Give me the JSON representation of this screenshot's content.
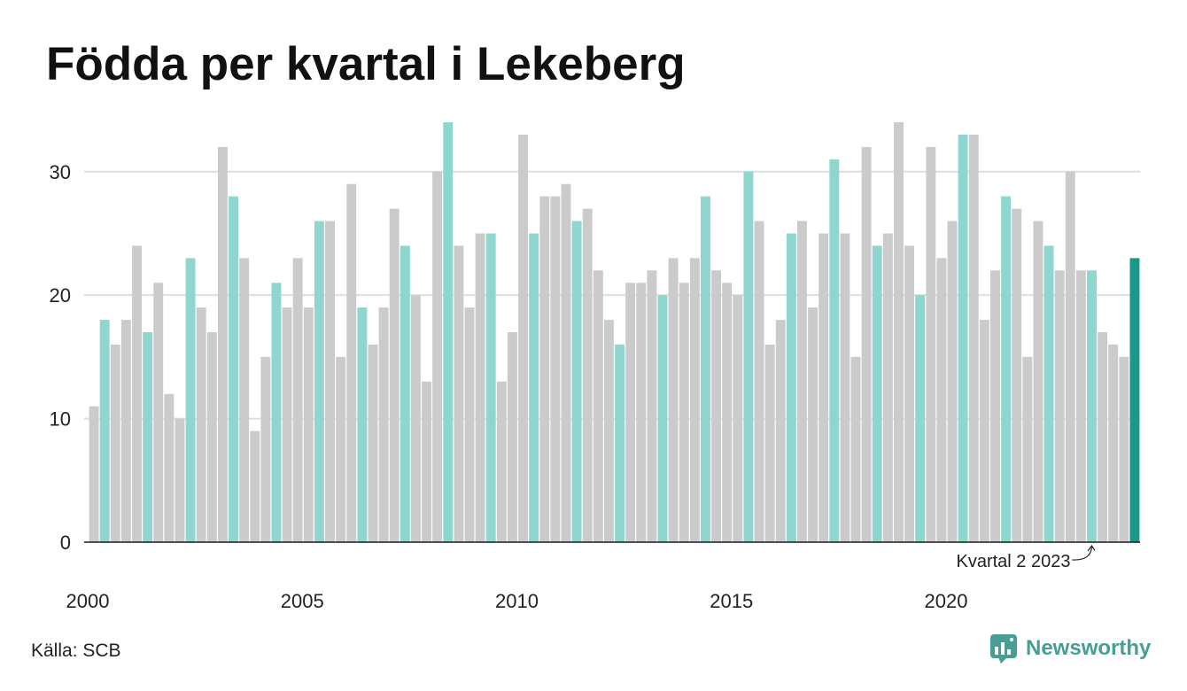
{
  "chart_data": {
    "type": "bar",
    "title": "Födda per kvartal i Lekeberg",
    "x": [
      "2000-Q1",
      "2000-Q2",
      "2000-Q3",
      "2000-Q4",
      "2001-Q1",
      "2001-Q2",
      "2001-Q3",
      "2001-Q4",
      "2002-Q1",
      "2002-Q2",
      "2002-Q3",
      "2002-Q4",
      "2003-Q1",
      "2003-Q2",
      "2003-Q3",
      "2003-Q4",
      "2004-Q1",
      "2004-Q2",
      "2004-Q3",
      "2004-Q4",
      "2005-Q1",
      "2005-Q2",
      "2005-Q3",
      "2005-Q4",
      "2006-Q1",
      "2006-Q2",
      "2006-Q3",
      "2006-Q4",
      "2007-Q1",
      "2007-Q2",
      "2007-Q3",
      "2007-Q4",
      "2008-Q1",
      "2008-Q2",
      "2008-Q3",
      "2008-Q4",
      "2009-Q1",
      "2009-Q2",
      "2009-Q3",
      "2009-Q4",
      "2010-Q1",
      "2010-Q2",
      "2010-Q3",
      "2010-Q4",
      "2011-Q1",
      "2011-Q2",
      "2011-Q3",
      "2011-Q4",
      "2012-Q1",
      "2012-Q2",
      "2012-Q3",
      "2012-Q4",
      "2013-Q1",
      "2013-Q2",
      "2013-Q3",
      "2013-Q4",
      "2014-Q1",
      "2014-Q2",
      "2014-Q3",
      "2014-Q4",
      "2015-Q1",
      "2015-Q2",
      "2015-Q3",
      "2015-Q4",
      "2016-Q1",
      "2016-Q2",
      "2016-Q3",
      "2016-Q4",
      "2017-Q1",
      "2017-Q2",
      "2017-Q3",
      "2017-Q4",
      "2018-Q1",
      "2018-Q2",
      "2018-Q3",
      "2018-Q4",
      "2019-Q1",
      "2019-Q2",
      "2019-Q3",
      "2019-Q4",
      "2020-Q1",
      "2020-Q2",
      "2020-Q3",
      "2020-Q4",
      "2021-Q1",
      "2021-Q2",
      "2021-Q3",
      "2021-Q4",
      "2022-Q1",
      "2022-Q2",
      "2022-Q3",
      "2022-Q4",
      "2023-Q1",
      "2023-Q2",
      "2023-Q3",
      "2023-Q4",
      "2024-Q1",
      "2024-Q2"
    ],
    "values": [
      11,
      18,
      16,
      18,
      24,
      17,
      21,
      12,
      10,
      23,
      19,
      17,
      32,
      28,
      23,
      9,
      15,
      21,
      19,
      23,
      19,
      26,
      26,
      15,
      29,
      19,
      16,
      19,
      27,
      24,
      20,
      13,
      30,
      34,
      24,
      19,
      25,
      25,
      13,
      17,
      33,
      25,
      28,
      28,
      29,
      26,
      27,
      22,
      18,
      16,
      21,
      21,
      22,
      20,
      23,
      21,
      23,
      28,
      22,
      21,
      20,
      30,
      26,
      16,
      18,
      25,
      26,
      19,
      25,
      31,
      25,
      15,
      32,
      24,
      25,
      34,
      24,
      20,
      32,
      23,
      26,
      33,
      33,
      18,
      22,
      28,
      27,
      15,
      26,
      24,
      22,
      30,
      22,
      22,
      17,
      16,
      15,
      23
    ],
    "x_tick_labels": [
      "2000",
      "2005",
      "2010",
      "2015",
      "2020"
    ],
    "y_ticks": [
      0,
      10,
      20,
      30
    ],
    "ylim": [
      0,
      34
    ],
    "grid": true,
    "legend": "none",
    "colors": {
      "bar": "#cbcbcb",
      "q2_bar": "#8ed6ce",
      "latest_bar": "#1a988a"
    },
    "annotation": {
      "text": "Kvartal 2 2023",
      "x": "2023-Q2"
    }
  },
  "source": "Källa: SCB",
  "brand": {
    "name": "Newsworthy",
    "icon": "newsworthy-logo-icon",
    "color": "#479e94"
  }
}
